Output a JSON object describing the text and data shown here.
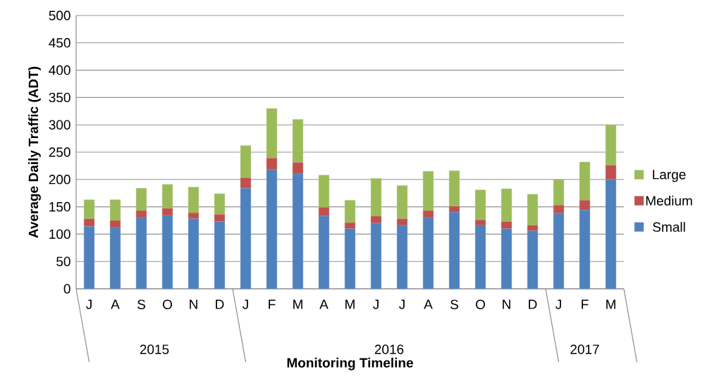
{
  "chart_data": {
    "type": "bar",
    "stacked": true,
    "xlabel": "Monitoring Timeline",
    "ylabel": "Average Daily Traffic (ADT)",
    "categories": [
      "J",
      "A",
      "S",
      "O",
      "N",
      "D",
      "J",
      "F",
      "M",
      "A",
      "M",
      "J",
      "J",
      "A",
      "S",
      "O",
      "N",
      "D",
      "J",
      "F",
      "M"
    ],
    "annotations": [
      "2015",
      "2016",
      "2017"
    ],
    "series": [
      {
        "name": "Small",
        "color": "#4f81bd",
        "values": [
          114,
          112,
          130,
          134,
          128,
          123,
          184,
          218,
          210,
          133,
          110,
          120,
          116,
          130,
          140,
          116,
          110,
          106,
          138,
          144,
          200
        ]
      },
      {
        "name": "Medium",
        "color": "#c0504d",
        "values": [
          14,
          13,
          13,
          13,
          11,
          13,
          19,
          21,
          21,
          16,
          11,
          13,
          12,
          13,
          11,
          10,
          13,
          10,
          15,
          18,
          26
        ]
      },
      {
        "name": "Large",
        "color": "#9bbb59",
        "values": [
          35,
          38,
          41,
          44,
          47,
          38,
          59,
          91,
          79,
          59,
          41,
          69,
          61,
          72,
          65,
          55,
          60,
          57,
          47,
          70,
          74
        ]
      }
    ],
    "ylim": [
      0,
      500
    ],
    "yticks": [
      0,
      50,
      100,
      150,
      200,
      250,
      300,
      350,
      400,
      450,
      500
    ],
    "grid": "y",
    "legend": "right"
  }
}
